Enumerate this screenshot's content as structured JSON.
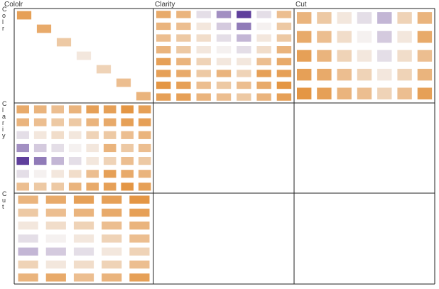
{
  "chart_data": {
    "type": "heatmap",
    "description_kind": "mosaic-style matrix of pairwise tiles",
    "variables": [
      "Cololr",
      "Clarity",
      "Cut"
    ],
    "column_headers": [
      "Cololr",
      "Clarity",
      "Cut"
    ],
    "row_labels": [
      "Colr",
      "Clariy",
      "Cut"
    ],
    "palette": {
      "low": "#e0821f",
      "mid": "#f4f0ef",
      "high": "#3f1a8a"
    },
    "blocks": {
      "Cololr|Cololr": [
        [
          0.1,
          0.0,
          0.0,
          0.0,
          0.0,
          0.0,
          0.0
        ],
        [
          0.0,
          0.15,
          0.0,
          0.0,
          0.0,
          0.0,
          0.0
        ],
        [
          0.0,
          0.0,
          0.3,
          0.0,
          0.0,
          0.0,
          0.0
        ],
        [
          0.0,
          0.0,
          0.0,
          0.45,
          0.0,
          0.0,
          0.0
        ],
        [
          0.0,
          0.0,
          0.0,
          0.0,
          0.35,
          0.0,
          0.0
        ],
        [
          0.0,
          0.0,
          0.0,
          0.0,
          0.0,
          0.25,
          0.0
        ],
        [
          0.0,
          0.0,
          0.0,
          0.0,
          0.0,
          0.0,
          0.2
        ]
      ],
      "Clarity|Cololr": [
        [
          0.15,
          0.2,
          0.55,
          0.75,
          0.95,
          0.55,
          0.25
        ],
        [
          0.2,
          0.25,
          0.45,
          0.6,
          0.8,
          0.5,
          0.3
        ],
        [
          0.25,
          0.3,
          0.4,
          0.55,
          0.65,
          0.45,
          0.3
        ],
        [
          0.2,
          0.3,
          0.45,
          0.5,
          0.55,
          0.4,
          0.2
        ],
        [
          0.1,
          0.2,
          0.35,
          0.45,
          0.45,
          0.25,
          0.15
        ],
        [
          0.1,
          0.15,
          0.3,
          0.2,
          0.35,
          0.1,
          0.1
        ],
        [
          0.05,
          0.1,
          0.25,
          0.3,
          0.25,
          0.15,
          0.05
        ],
        [
          0.1,
          0.1,
          0.2,
          0.25,
          0.3,
          0.2,
          0.1
        ]
      ],
      "Cut|Cololr": [
        [
          0.2,
          0.3,
          0.45,
          0.55,
          0.65,
          0.35,
          0.2
        ],
        [
          0.15,
          0.25,
          0.4,
          0.5,
          0.6,
          0.45,
          0.15
        ],
        [
          0.1,
          0.2,
          0.35,
          0.45,
          0.55,
          0.4,
          0.25
        ],
        [
          0.1,
          0.15,
          0.25,
          0.35,
          0.45,
          0.35,
          0.2
        ],
        [
          0.05,
          0.1,
          0.2,
          0.25,
          0.35,
          0.25,
          0.1
        ]
      ]
    }
  }
}
